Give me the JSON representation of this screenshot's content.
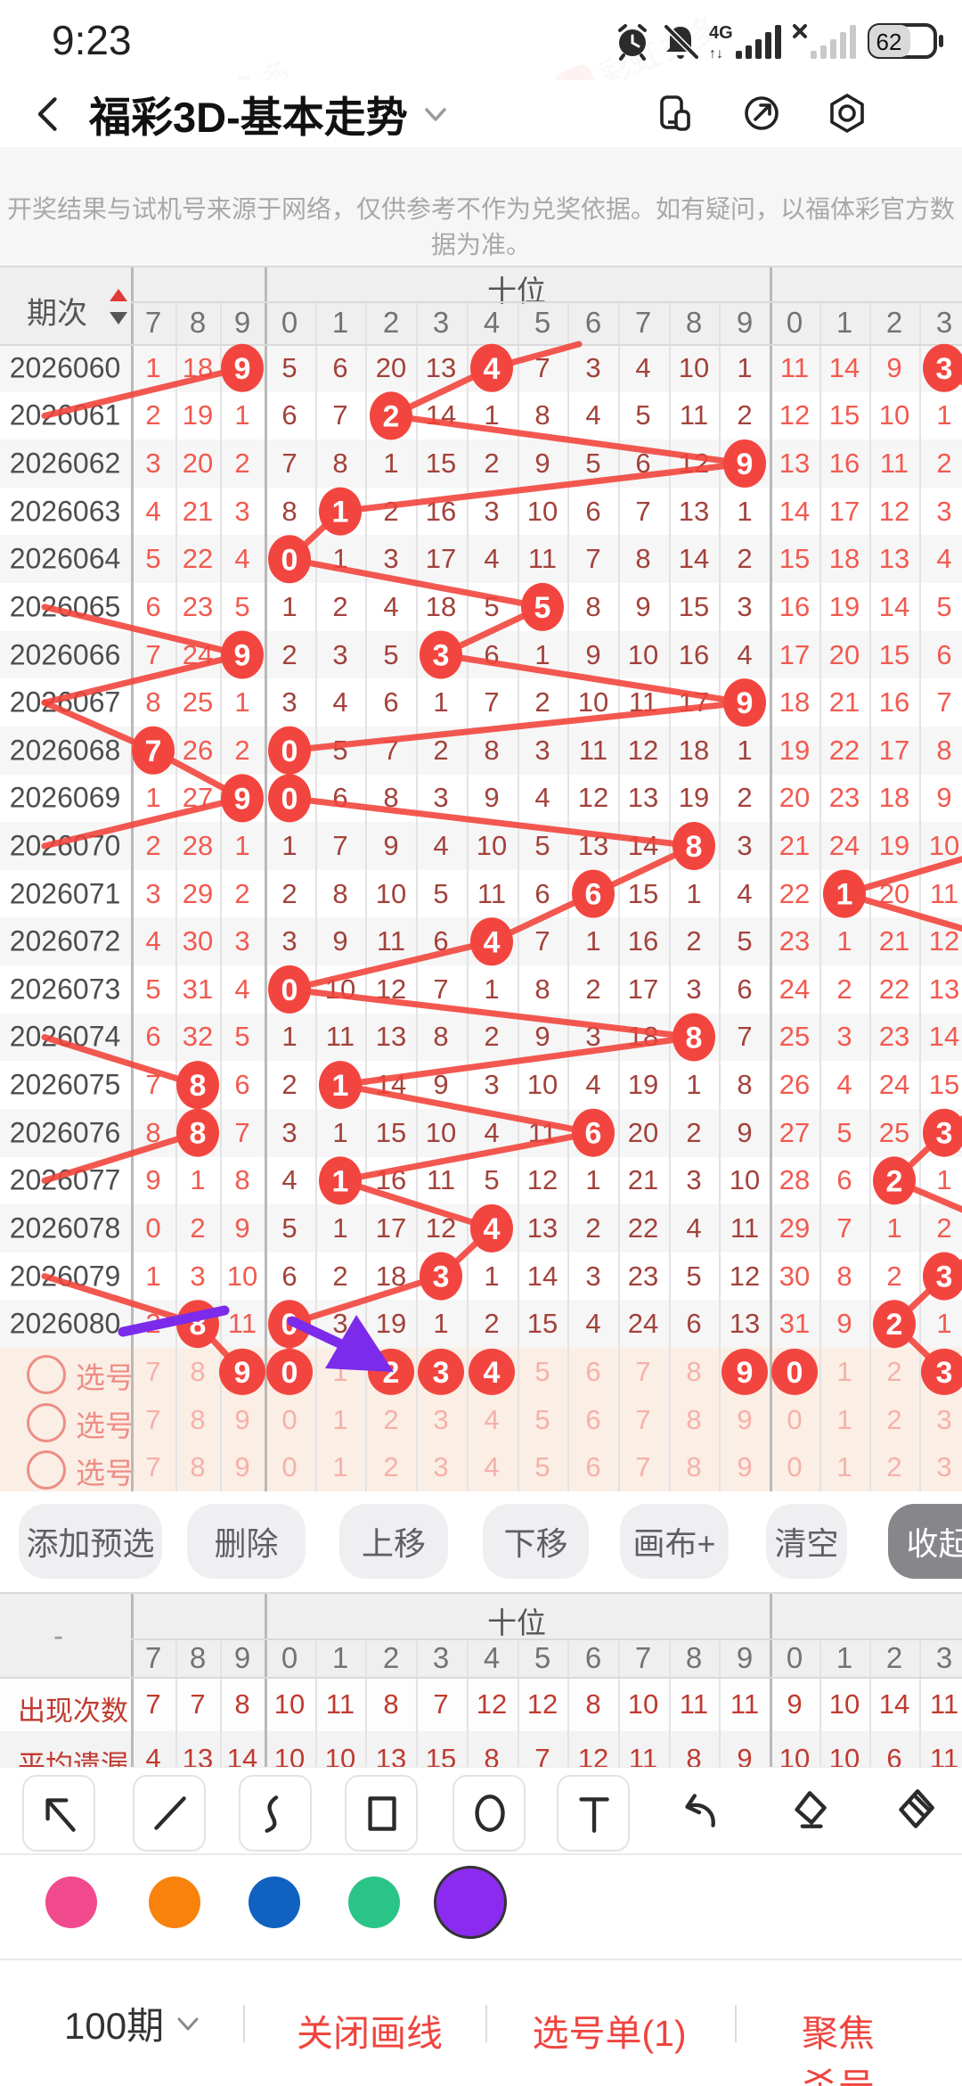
{
  "status_bar": {
    "time": "9:23",
    "battery_percent": "62",
    "network": "4G"
  },
  "header": {
    "title": "福彩3D-基本走势"
  },
  "notice": {
    "text": "开奖结果与试机号来源于网络，仅供参考不作为兑奖依据。如有疑问，以福体彩官方数据为准。"
  },
  "colors": {
    "accent_red": "#f0443e",
    "circle_red": "#f3453f",
    "line_red": "#f24239",
    "dark_value": "#a2423b",
    "light_value": "#f25a50",
    "stat_value": "#c03a30",
    "select_bg": "#fbeee5",
    "purple": "#7c2bea"
  },
  "table": {
    "period_header": "期次",
    "group_label": "十位",
    "digit_columns": [
      "7",
      "8",
      "9",
      "0",
      "1",
      "2",
      "3",
      "4",
      "5",
      "6",
      "7",
      "8",
      "9",
      "0",
      "1",
      "2",
      "3"
    ],
    "rows": [
      {
        "period": "2026060",
        "cells": [
          "1",
          "18",
          "9",
          "5",
          "6",
          "20",
          "13",
          "4",
          "7",
          "3",
          "4",
          "10",
          "1",
          "11",
          "14",
          "9",
          "3"
        ],
        "circles": [
          2,
          7,
          16
        ]
      },
      {
        "period": "2026061",
        "cells": [
          "2",
          "19",
          "1",
          "6",
          "7",
          "2",
          "14",
          "1",
          "8",
          "4",
          "5",
          "11",
          "2",
          "12",
          "15",
          "10",
          "1"
        ],
        "circles": [
          5
        ]
      },
      {
        "period": "2026062",
        "cells": [
          "3",
          "20",
          "2",
          "7",
          "8",
          "1",
          "15",
          "2",
          "9",
          "5",
          "6",
          "12",
          "9",
          "13",
          "16",
          "11",
          "2"
        ],
        "circles": [
          12
        ]
      },
      {
        "period": "2026063",
        "cells": [
          "4",
          "21",
          "3",
          "8",
          "1",
          "2",
          "16",
          "3",
          "10",
          "6",
          "7",
          "13",
          "1",
          "14",
          "17",
          "12",
          "3"
        ],
        "circles": [
          4
        ]
      },
      {
        "period": "2026064",
        "cells": [
          "5",
          "22",
          "4",
          "0",
          "1",
          "3",
          "17",
          "4",
          "11",
          "7",
          "8",
          "14",
          "2",
          "15",
          "18",
          "13",
          "4"
        ],
        "circles": [
          3
        ]
      },
      {
        "period": "2026065",
        "cells": [
          "6",
          "23",
          "5",
          "1",
          "2",
          "4",
          "18",
          "5",
          "5",
          "8",
          "9",
          "15",
          "3",
          "16",
          "19",
          "14",
          "5"
        ],
        "circles": [
          8
        ]
      },
      {
        "period": "2026066",
        "cells": [
          "7",
          "24",
          "9",
          "2",
          "3",
          "5",
          "3",
          "6",
          "1",
          "9",
          "10",
          "16",
          "4",
          "17",
          "20",
          "15",
          "6"
        ],
        "circles": [
          2,
          6
        ]
      },
      {
        "period": "2026067",
        "cells": [
          "8",
          "25",
          "1",
          "3",
          "4",
          "6",
          "1",
          "7",
          "2",
          "10",
          "11",
          "17",
          "9",
          "18",
          "21",
          "16",
          "7"
        ],
        "circles": [
          12
        ]
      },
      {
        "period": "2026068",
        "cells": [
          "7",
          "26",
          "2",
          "0",
          "5",
          "7",
          "2",
          "8",
          "3",
          "11",
          "12",
          "18",
          "1",
          "19",
          "22",
          "17",
          "8"
        ],
        "circles": [
          0,
          3
        ]
      },
      {
        "period": "2026069",
        "cells": [
          "1",
          "27",
          "9",
          "0",
          "6",
          "8",
          "3",
          "9",
          "4",
          "12",
          "13",
          "19",
          "2",
          "20",
          "23",
          "18",
          "9"
        ],
        "circles": [
          2,
          3
        ]
      },
      {
        "period": "2026070",
        "cells": [
          "2",
          "28",
          "1",
          "1",
          "7",
          "9",
          "4",
          "10",
          "5",
          "13",
          "14",
          "8",
          "3",
          "21",
          "24",
          "19",
          "10"
        ],
        "circles": [
          11
        ]
      },
      {
        "period": "2026071",
        "cells": [
          "3",
          "29",
          "2",
          "2",
          "8",
          "10",
          "5",
          "11",
          "6",
          "6",
          "15",
          "1",
          "4",
          "22",
          "1",
          "20",
          "11"
        ],
        "circles": [
          9,
          14
        ]
      },
      {
        "period": "2026072",
        "cells": [
          "4",
          "30",
          "3",
          "3",
          "9",
          "11",
          "6",
          "4",
          "7",
          "1",
          "16",
          "2",
          "5",
          "23",
          "1",
          "21",
          "12"
        ],
        "circles": [
          7
        ]
      },
      {
        "period": "2026073",
        "cells": [
          "5",
          "31",
          "4",
          "0",
          "10",
          "12",
          "7",
          "1",
          "8",
          "2",
          "17",
          "3",
          "6",
          "24",
          "2",
          "22",
          "13"
        ],
        "circles": [
          3
        ]
      },
      {
        "period": "2026074",
        "cells": [
          "6",
          "32",
          "5",
          "1",
          "11",
          "13",
          "8",
          "2",
          "9",
          "3",
          "18",
          "8",
          "7",
          "25",
          "3",
          "23",
          "14"
        ],
        "circles": [
          11
        ]
      },
      {
        "period": "2026075",
        "cells": [
          "7",
          "8",
          "6",
          "2",
          "1",
          "14",
          "9",
          "3",
          "10",
          "4",
          "19",
          "1",
          "8",
          "26",
          "4",
          "24",
          "15"
        ],
        "circles": [
          1,
          4
        ]
      },
      {
        "period": "2026076",
        "cells": [
          "8",
          "8",
          "7",
          "3",
          "1",
          "15",
          "10",
          "4",
          "11",
          "6",
          "20",
          "2",
          "9",
          "27",
          "5",
          "25",
          "3"
        ],
        "circles": [
          1,
          9,
          16
        ]
      },
      {
        "period": "2026077",
        "cells": [
          "9",
          "1",
          "8",
          "4",
          "1",
          "16",
          "11",
          "5",
          "12",
          "1",
          "21",
          "3",
          "10",
          "28",
          "6",
          "2",
          "1"
        ],
        "circles": [
          4,
          15
        ]
      },
      {
        "period": "2026078",
        "cells": [
          "0",
          "2",
          "9",
          "5",
          "1",
          "17",
          "12",
          "4",
          "13",
          "2",
          "22",
          "4",
          "11",
          "29",
          "7",
          "1",
          "2"
        ],
        "circles": [
          7
        ]
      },
      {
        "period": "2026079",
        "cells": [
          "1",
          "3",
          "10",
          "6",
          "2",
          "18",
          "3",
          "1",
          "14",
          "3",
          "23",
          "5",
          "12",
          "30",
          "8",
          "2",
          "3"
        ],
        "circles": [
          6,
          16
        ]
      },
      {
        "period": "2026080",
        "cells": [
          "2",
          "8",
          "11",
          "0",
          "3",
          "19",
          "1",
          "2",
          "15",
          "4",
          "24",
          "6",
          "13",
          "31",
          "9",
          "2",
          "1"
        ],
        "circles": [
          1,
          3,
          15
        ]
      }
    ],
    "select_rows": [
      {
        "label": "选号",
        "digits": [
          "7",
          "8",
          "9",
          "0",
          "1",
          "2",
          "3",
          "4",
          "5",
          "6",
          "7",
          "8",
          "9",
          "0",
          "1",
          "2",
          "3"
        ],
        "selected": [
          2,
          3,
          5,
          6,
          7,
          12,
          13,
          16
        ]
      },
      {
        "label": "选号",
        "digits": [
          "7",
          "8",
          "9",
          "0",
          "1",
          "2",
          "3",
          "4",
          "5",
          "6",
          "7",
          "8",
          "9",
          "0",
          "1",
          "2",
          "3"
        ],
        "selected": []
      },
      {
        "label": "选号",
        "digits": [
          "7",
          "8",
          "9",
          "0",
          "1",
          "2",
          "3",
          "4",
          "5",
          "6",
          "7",
          "8",
          "9",
          "0",
          "1",
          "2",
          "3"
        ],
        "selected": []
      }
    ]
  },
  "toolbar_buttons": [
    "添加预选",
    "删除",
    "上移",
    "下移",
    "画布+",
    "清空",
    "收起"
  ],
  "stats": {
    "dash": "-",
    "group_label": "十位",
    "digit_columns": [
      "7",
      "8",
      "9",
      "0",
      "1",
      "2",
      "3",
      "4",
      "5",
      "6",
      "7",
      "8",
      "9",
      "0",
      "1",
      "2",
      "3"
    ],
    "rows": [
      {
        "label": "出现次数",
        "values": [
          "7",
          "7",
          "8",
          "10",
          "11",
          "8",
          "7",
          "12",
          "12",
          "8",
          "10",
          "11",
          "11",
          "9",
          "10",
          "14",
          "11"
        ]
      },
      {
        "label": "平均遗漏",
        "values": [
          "4",
          "13",
          "14",
          "10",
          "10",
          "13",
          "15",
          "8",
          "7",
          "12",
          "11",
          "8",
          "9",
          "10",
          "10",
          "6",
          "11"
        ]
      }
    ]
  },
  "draw_tools": [
    "arrow-tool",
    "line-tool",
    "curve-tool",
    "rect-tool",
    "ellipse-tool",
    "text-tool",
    "undo",
    "eraser",
    "clear-canvas"
  ],
  "palette": {
    "colors": [
      "#f04a8c",
      "#f8820b",
      "#1161c1",
      "#2bc488",
      "#8b2bef"
    ],
    "selected_index": 4
  },
  "bottom_bar": {
    "periods": "100期",
    "close_draw": "关闭画线",
    "selection_list": "选号单(1)",
    "focus_kill": "聚焦杀号"
  },
  "watermark": "彩虹多多"
}
